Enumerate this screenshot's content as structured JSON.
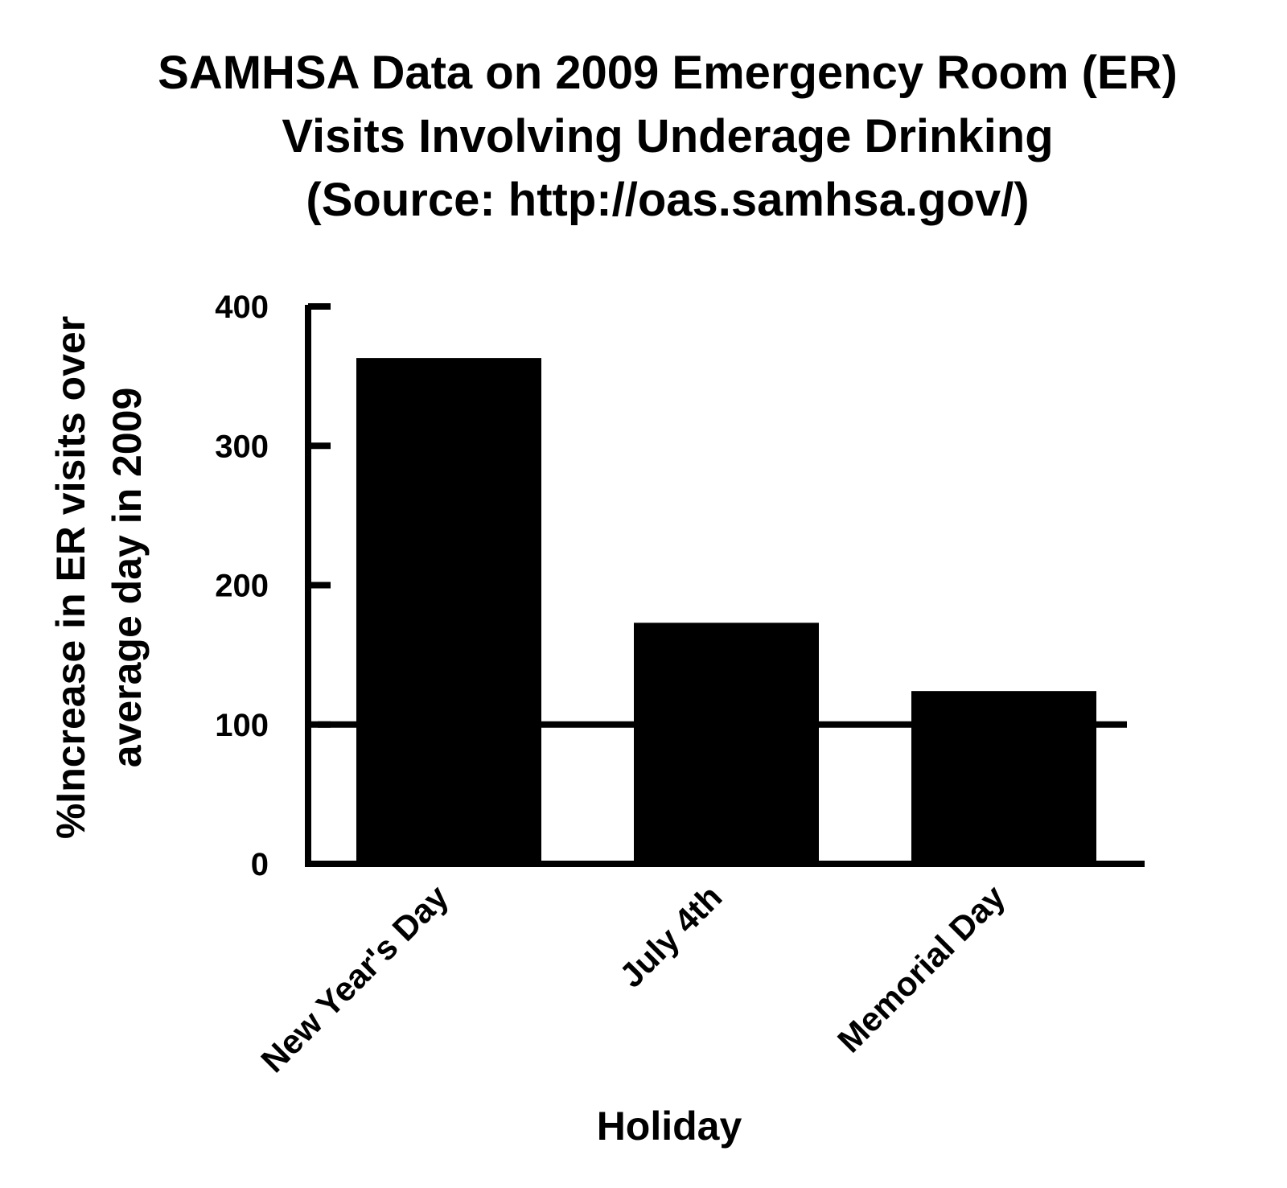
{
  "chart_data": {
    "type": "bar",
    "title_lines": [
      "SAMHSA Data on 2009 Emergency Room (ER)",
      "Visits Involving Underage Drinking",
      "(Source: http://oas.samhsa.gov/)"
    ],
    "categories": [
      "New Year's Day",
      "July 4th",
      "Memorial Day"
    ],
    "values": [
      363,
      173,
      124
    ],
    "xlabel": "Holiday",
    "ylabel_lines": [
      "%Increase in ER visits over",
      "average day in 2009"
    ],
    "ylim": [
      0,
      400
    ],
    "yticks": [
      "0",
      "100",
      "200",
      "300",
      "400"
    ],
    "reference_line": 100,
    "bar_color": "#000000",
    "grid": false,
    "legend": "none"
  }
}
